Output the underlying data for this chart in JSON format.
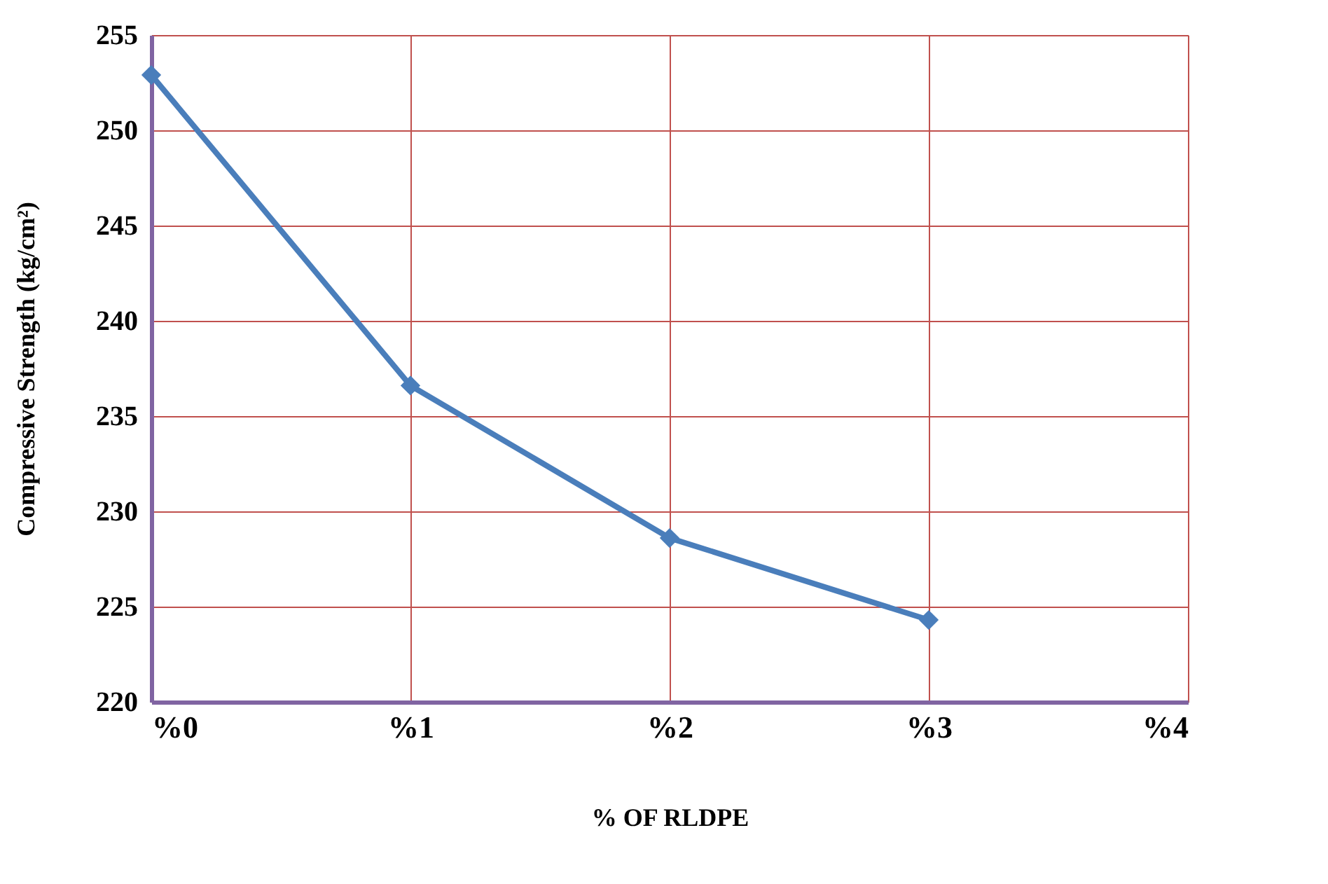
{
  "chart_data": {
    "type": "line",
    "xlabel": "% OF RLDPE",
    "ylabel": "Compressive Strength (kg/cm²)",
    "x": [
      0,
      1,
      2,
      3
    ],
    "series": [
      {
        "color": "#4a7ebb",
        "values": [
          252.9,
          236.6,
          228.6,
          224.3
        ]
      }
    ],
    "xlim": [
      0,
      4
    ],
    "xticks": [
      {
        "value": 0,
        "label": "%0"
      },
      {
        "value": 1,
        "label": "%1"
      },
      {
        "value": 2,
        "label": "%2"
      },
      {
        "value": 3,
        "label": "%3"
      },
      {
        "value": 4,
        "label": "%4"
      }
    ],
    "ylim": [
      220,
      255
    ],
    "yticks": [
      220,
      225,
      230,
      235,
      240,
      245,
      250,
      255
    ],
    "grid": true,
    "marker": "diamond",
    "line_style": "solid"
  }
}
